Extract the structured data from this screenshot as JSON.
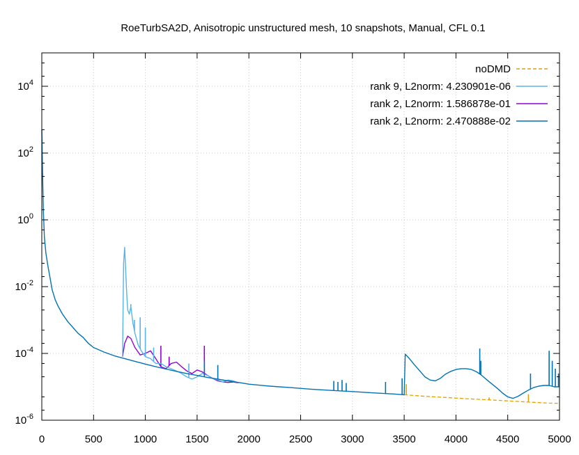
{
  "chart_data": {
    "type": "line",
    "title": "RoeTurbSA2D, Anisotropic unstructured mesh, 10 snapshots, Manual, CFL 0.1",
    "xlabel": "",
    "ylabel": "",
    "xlim": [
      0,
      5000
    ],
    "ylim": [
      1e-06,
      100000
    ],
    "y_scale": "log",
    "grid": true,
    "legend_position": "top-right",
    "x_ticks": [
      0,
      500,
      1000,
      1500,
      2000,
      2500,
      3000,
      3500,
      4000,
      4500,
      5000
    ],
    "x_tick_labels": [
      "0",
      "500",
      "1000",
      "1500",
      "2000",
      "2500",
      "3000",
      "3500",
      "4000",
      "4500",
      "5000"
    ],
    "y_ticks": [
      {
        "value": 1e-06,
        "base": "10",
        "exp": "-6"
      },
      {
        "value": 0.0001,
        "base": "10",
        "exp": "-4"
      },
      {
        "value": 0.01,
        "base": "10",
        "exp": "-2"
      },
      {
        "value": 1,
        "base": "10",
        "exp": "0"
      },
      {
        "value": 100,
        "base": "10",
        "exp": "2"
      },
      {
        "value": 10000,
        "base": "10",
        "exp": "4"
      }
    ],
    "series": [
      {
        "name": "noDMD",
        "color": "#e69f00",
        "dash": true,
        "points": [
          [
            3500,
            5.8e-06
          ],
          [
            3700,
            5.2e-06
          ],
          [
            3900,
            4.8e-06
          ],
          [
            4100,
            4.4e-06
          ],
          [
            4300,
            4.1e-06
          ],
          [
            4500,
            3.8e-06
          ],
          [
            4700,
            3.5e-06
          ],
          [
            4900,
            3.25e-06
          ],
          [
            5000,
            3.2e-06
          ]
        ],
        "spikes": [
          [
            3520,
            1.2e-05
          ],
          [
            4320,
            4.8e-06
          ],
          [
            4700,
            6e-06
          ]
        ]
      },
      {
        "name": "rank 9, L2norm: 4.230901e-06",
        "color": "#56b4e9",
        "dash": false,
        "points": [
          [
            780,
            8e-05
          ],
          [
            790,
            0.05
          ],
          [
            800,
            0.15
          ],
          [
            810,
            0.03
          ],
          [
            820,
            0.006
          ],
          [
            830,
            0.002
          ],
          [
            845,
            0.0015
          ],
          [
            860,
            0.0025
          ],
          [
            880,
            0.0008
          ],
          [
            900,
            0.0004
          ],
          [
            930,
            0.00018
          ],
          [
            960,
            0.00012
          ],
          [
            1000,
            8e-05
          ],
          [
            1050,
            7e-05
          ],
          [
            1100,
            5e-05
          ],
          [
            1150,
            5e-05
          ],
          [
            1200,
            4e-05
          ],
          [
            1300,
            3e-05
          ],
          [
            1350,
            2.5e-05
          ],
          [
            1400,
            2e-05
          ],
          [
            1450,
            1.7e-05
          ],
          [
            1500,
            2e-05
          ],
          [
            1550,
            2.5e-05
          ],
          [
            1600,
            2.2e-05
          ],
          [
            1650,
            1.8e-05
          ],
          [
            1700,
            1.6e-05
          ],
          [
            1750,
            1.4e-05
          ],
          [
            1800,
            1.6e-05
          ],
          [
            1850,
            1.5e-05
          ],
          [
            1900,
            1.3e-05
          ]
        ],
        "spikes": [
          [
            860,
            0.003
          ],
          [
            895,
            0.001
          ],
          [
            950,
            0.0012
          ],
          [
            1000,
            0.0006
          ],
          [
            1080,
            0.00015
          ],
          [
            1420,
            5e-05
          ]
        ]
      },
      {
        "name": "rank 2, L2norm: 1.586878e-01",
        "color": "#9400d3",
        "dash": false,
        "points": [
          [
            780,
            8e-05
          ],
          [
            800,
            0.0002
          ],
          [
            830,
            0.00033
          ],
          [
            860,
            0.00028
          ],
          [
            900,
            0.00015
          ],
          [
            950,
            9e-05
          ],
          [
            1000,
            0.0001
          ],
          [
            1050,
            0.00012
          ],
          [
            1100,
            7e-05
          ],
          [
            1150,
            4e-05
          ],
          [
            1200,
            3.5e-05
          ],
          [
            1250,
            5e-05
          ],
          [
            1300,
            5.5e-05
          ],
          [
            1350,
            4e-05
          ],
          [
            1400,
            3e-05
          ],
          [
            1450,
            2.5e-05
          ],
          [
            1500,
            3.2e-05
          ],
          [
            1550,
            2.8e-05
          ],
          [
            1600,
            2.2e-05
          ],
          [
            1650,
            1.8e-05
          ],
          [
            1700,
            1.5e-05
          ],
          [
            1750,
            1.4e-05
          ],
          [
            1800,
            1.35e-05
          ],
          [
            1850,
            1.4e-05
          ],
          [
            1900,
            1.3e-05
          ]
        ],
        "spikes": [
          [
            1150,
            0.00017
          ],
          [
            1230,
            8e-05
          ],
          [
            1570,
            0.00017
          ]
        ]
      },
      {
        "name": "rank 2, L2norm: 2.470888e-02",
        "color": "#0072b2",
        "dash": false,
        "points": [
          [
            0,
            500
          ],
          [
            8,
            20
          ],
          [
            15,
            2
          ],
          [
            25,
            0.3
          ],
          [
            40,
            0.1
          ],
          [
            60,
            0.04
          ],
          [
            80,
            0.018
          ],
          [
            100,
            0.008
          ],
          [
            130,
            0.004
          ],
          [
            160,
            0.0025
          ],
          [
            200,
            0.0015
          ],
          [
            250,
            0.0009
          ],
          [
            300,
            0.0006
          ],
          [
            350,
            0.0004
          ],
          [
            400,
            0.0003
          ],
          [
            450,
            0.0002
          ],
          [
            500,
            0.00015
          ],
          [
            600,
            0.00011
          ],
          [
            700,
            8.5e-05
          ],
          [
            800,
            7e-05
          ],
          [
            900,
            5.8e-05
          ],
          [
            1000,
            4.8e-05
          ],
          [
            1100,
            4e-05
          ],
          [
            1200,
            3.4e-05
          ],
          [
            1300,
            2.9e-05
          ],
          [
            1400,
            2.5e-05
          ],
          [
            1500,
            2.2e-05
          ],
          [
            1600,
            1.9e-05
          ],
          [
            1700,
            1.7e-05
          ],
          [
            1800,
            1.5e-05
          ],
          [
            1900,
            1.35e-05
          ],
          [
            2000,
            1.2e-05
          ],
          [
            2200,
            1.05e-05
          ],
          [
            2400,
            9.5e-06
          ],
          [
            2600,
            8.5e-06
          ],
          [
            2800,
            7.8e-06
          ],
          [
            3000,
            7.2e-06
          ],
          [
            3200,
            6.6e-06
          ],
          [
            3400,
            6.1e-06
          ],
          [
            3500,
            5.8e-06
          ],
          [
            3510,
            9.5e-05
          ],
          [
            3550,
            7e-05
          ],
          [
            3600,
            4.5e-05
          ],
          [
            3650,
            3e-05
          ],
          [
            3700,
            2e-05
          ],
          [
            3750,
            1.6e-05
          ],
          [
            3800,
            1.5e-05
          ],
          [
            3850,
            1.8e-05
          ],
          [
            3900,
            2.4e-05
          ],
          [
            3950,
            2.9e-05
          ],
          [
            4000,
            3.3e-05
          ],
          [
            4050,
            3.5e-05
          ],
          [
            4100,
            3.5e-05
          ],
          [
            4150,
            3.3e-05
          ],
          [
            4200,
            2.8e-05
          ],
          [
            4250,
            2.2e-05
          ],
          [
            4300,
            1.6e-05
          ],
          [
            4350,
            1.2e-05
          ],
          [
            4400,
            9e-06
          ],
          [
            4450,
            6.5e-06
          ],
          [
            4500,
            5e-06
          ],
          [
            4550,
            4.5e-06
          ],
          [
            4600,
            5.2e-06
          ],
          [
            4650,
            6.5e-06
          ],
          [
            4700,
            8e-06
          ],
          [
            4750,
            9.5e-06
          ],
          [
            4800,
            1.05e-05
          ],
          [
            4850,
            1.1e-05
          ],
          [
            4900,
            1.1e-05
          ],
          [
            4950,
            1e-05
          ],
          [
            5000,
            1e-05
          ]
        ],
        "spikes": [
          [
            1570,
            6e-05
          ],
          [
            1700,
            4.5e-05
          ],
          [
            2820,
            1.5e-05
          ],
          [
            2860,
            1.4e-05
          ],
          [
            2900,
            1.6e-05
          ],
          [
            2940,
            1.3e-05
          ],
          [
            3320,
            1.4e-05
          ],
          [
            3480,
            1.8e-05
          ],
          [
            4230,
            0.00014
          ],
          [
            4240,
            6e-05
          ],
          [
            4720,
            2.5e-05
          ],
          [
            4900,
            0.00012
          ],
          [
            4930,
            6e-05
          ],
          [
            4960,
            3.5e-05
          ],
          [
            4990,
            2.5e-05
          ]
        ]
      }
    ]
  }
}
